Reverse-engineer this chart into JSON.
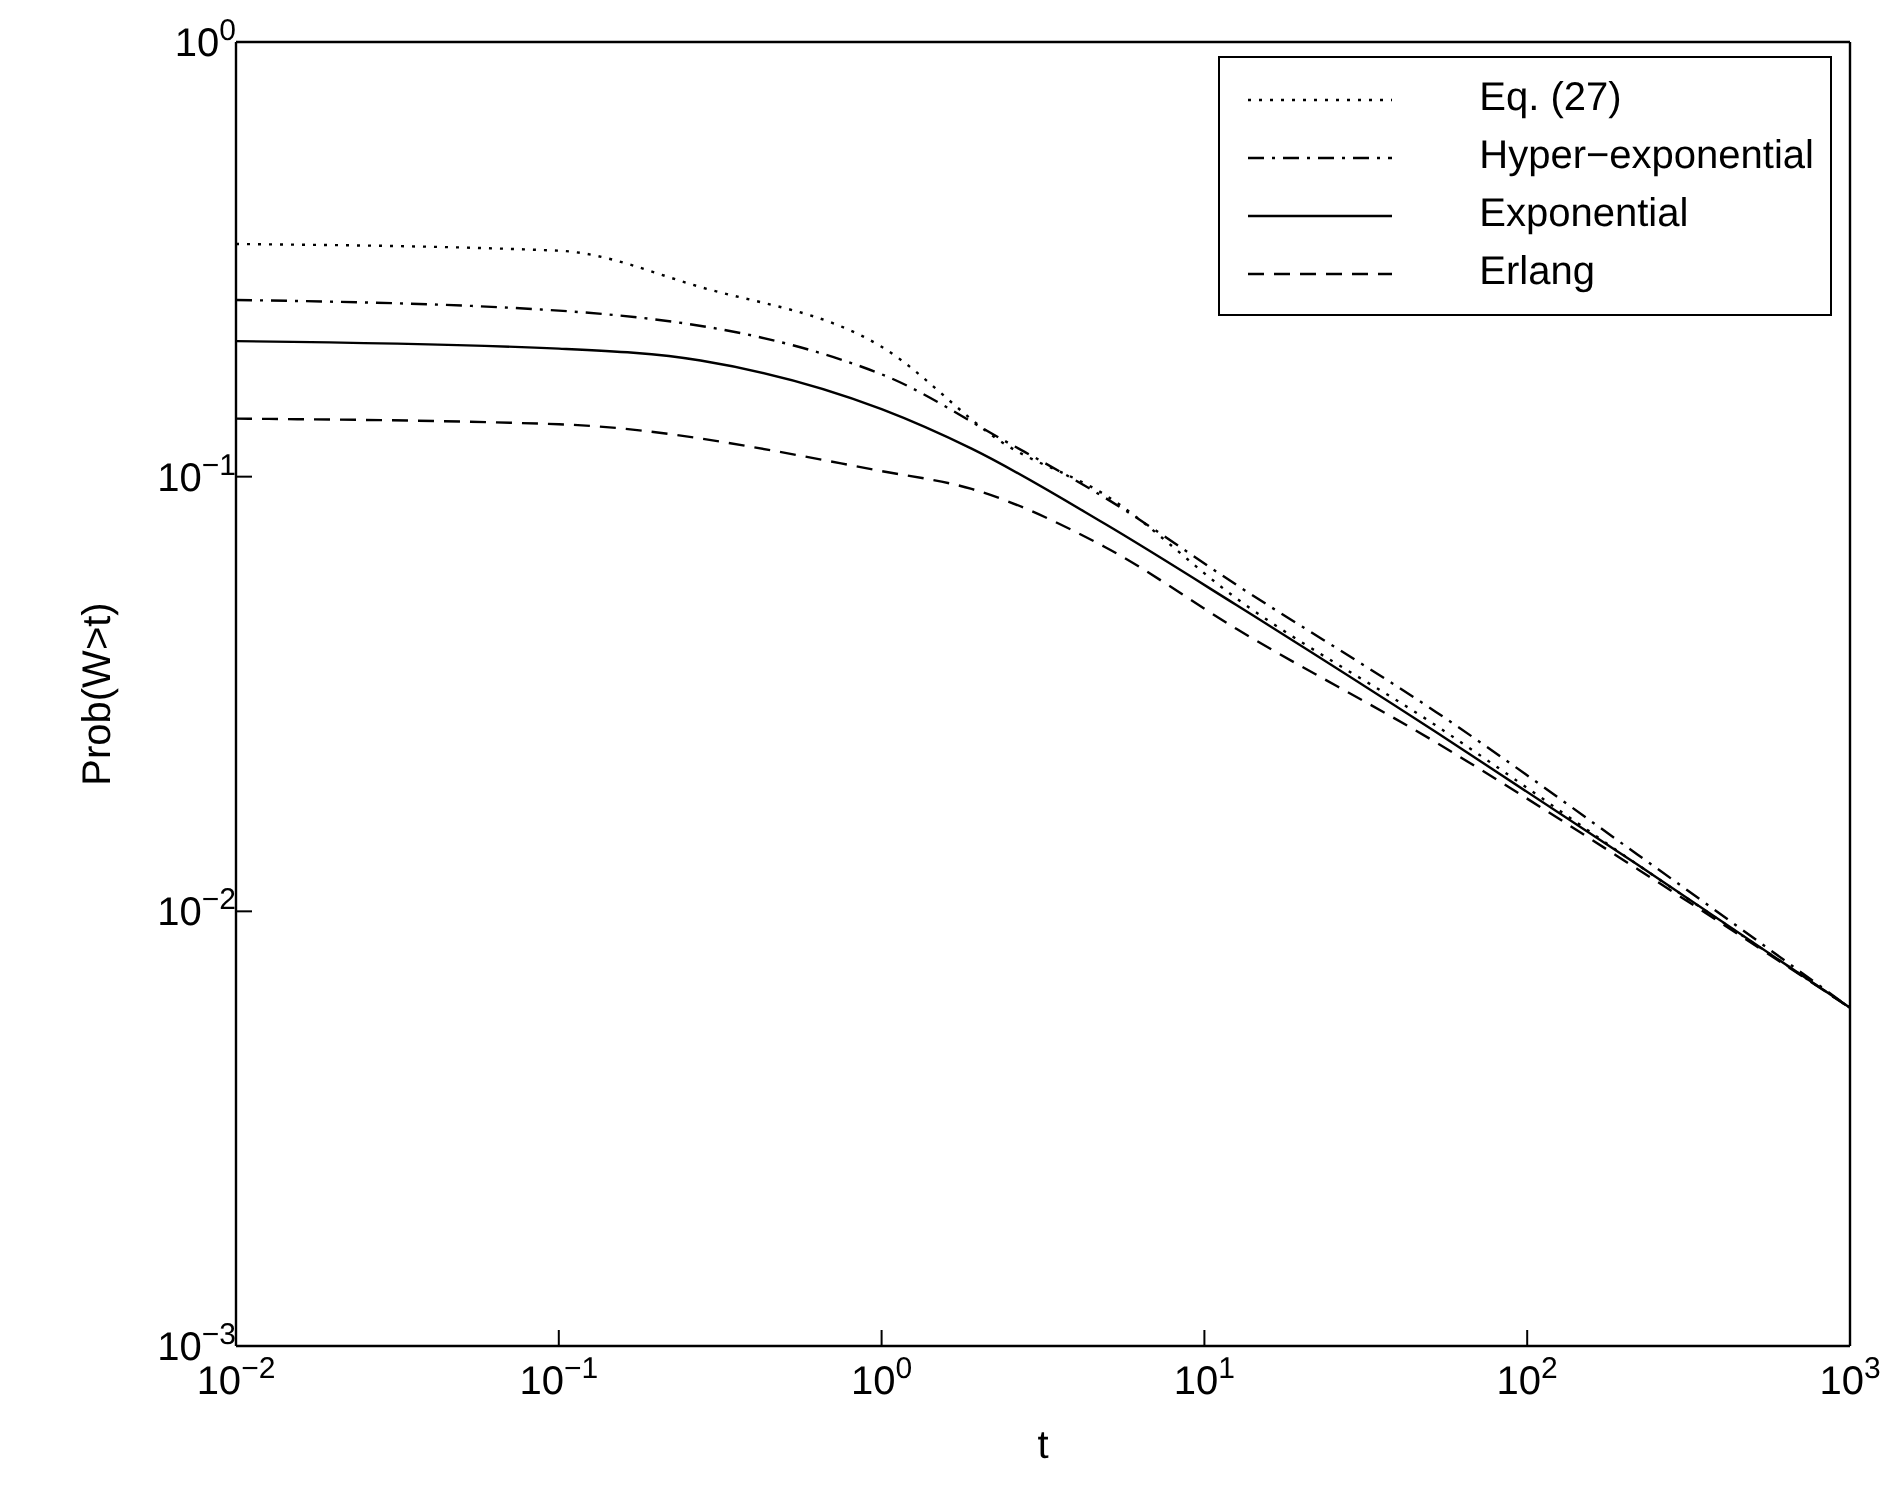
{
  "chart_data": {
    "type": "line",
    "xlabel": "t",
    "ylabel": "Prob(W>t)",
    "log": "xy",
    "grid": false,
    "legend": "top right",
    "marker": "none",
    "xlim": [
      0.01,
      1000
    ],
    "ylim": [
      0.001,
      1
    ],
    "xticks": [
      {
        "value": 0.01,
        "label": "10$^{−2}$"
      },
      {
        "value": 0.1,
        "label": "10$^{−1}$"
      },
      {
        "value": 1,
        "label": "10$^{0}$"
      },
      {
        "value": 10,
        "label": "10$^{1}$"
      },
      {
        "value": 100,
        "label": "10$^{2}$"
      },
      {
        "value": 1000,
        "label": "10$^{3}$"
      }
    ],
    "yticks": [
      {
        "value": 0.001,
        "label": "10$^{−3}$"
      },
      {
        "value": 0.01,
        "label": "10$^{−2}$"
      },
      {
        "value": 0.1,
        "label": "10$^{−1}$"
      },
      {
        "value": 1,
        "label": "10$^{0}$"
      }
    ],
    "series": [
      {
        "name": "Eq. (27)",
        "color": "#000000",
        "line_style": "dotted",
        "x": [
          0.01,
          0.1,
          0.275,
          1,
          2.4,
          4.9,
          12.6,
          52,
          220,
          1000
        ],
        "values": [
          0.343,
          0.331,
          0.273,
          0.199,
          0.119,
          0.091,
          0.0524,
          0.0268,
          0.0128,
          0.006
        ]
      },
      {
        "name": "Hyper−exponential",
        "color": "#000000",
        "line_style": "dashdot",
        "x": [
          0.01,
          0.1,
          1,
          2.4,
          4.9,
          12.6,
          52,
          220,
          1000
        ],
        "values": [
          0.255,
          0.241,
          0.172,
          0.121,
          0.0896,
          0.0563,
          0.0288,
          0.0135,
          0.006
        ]
      },
      {
        "name": "Exponential",
        "color": "#000000",
        "line_style": "solid",
        "x": [
          0.01,
          0.1,
          0.275,
          1,
          1.9,
          4.9,
          12.6,
          52,
          220,
          1000
        ],
        "values": [
          0.205,
          0.197,
          0.185,
          0.143,
          0.116,
          0.078,
          0.0506,
          0.0259,
          0.0128,
          0.006
        ]
      },
      {
        "name": "Erlang",
        "color": "#000000",
        "line_style": "dashed",
        "x": [
          0.01,
          0.1,
          1,
          1.9,
          4.9,
          12.6,
          52,
          220,
          1000
        ],
        "values": [
          0.136,
          0.132,
          0.103,
          0.0937,
          0.069,
          0.0446,
          0.0245,
          0.0125,
          0.006
        ]
      }
    ]
  }
}
